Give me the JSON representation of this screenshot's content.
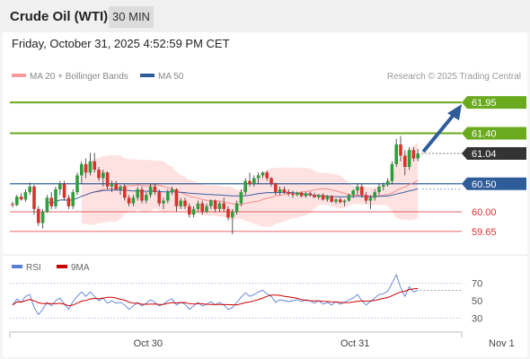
{
  "header": {
    "instrument": "Crude Oil (WTI)",
    "timeframe": "30 MIN"
  },
  "timestamp": "Friday, October 31, 2025 4:52:59 PM CET",
  "credit": "Research © 2025 Trading Central",
  "colors": {
    "up": "#2e9e3e",
    "down": "#d9322b",
    "resistance": "#6aaa1e",
    "support_blue": "#2f5d9a",
    "support_red": "#d33",
    "current": "#333333",
    "bollinger": "#fdd8d8",
    "ma20": "#f08d8d",
    "ma50": "#3a5fa0",
    "rsi": "#5b7fd6",
    "rsi_ma": "#cc0000"
  },
  "chart_data": [
    {
      "type": "candlestick",
      "legend": [
        {
          "name": "MA 20 + Bollinger Bands",
          "color": "#f79b9b"
        },
        {
          "name": "MA 50",
          "color": "#2f5d9a"
        }
      ],
      "ylim": [
        59.44,
        62.08
      ],
      "levels": [
        {
          "value": 61.95,
          "label": "61.95",
          "kind": "resistance"
        },
        {
          "value": 61.4,
          "label": "61.40",
          "kind": "resistance"
        },
        {
          "value": 61.04,
          "label": "61.04",
          "kind": "current"
        },
        {
          "value": 60.5,
          "label": "60.50",
          "kind": "support_blue"
        },
        {
          "value": 60.0,
          "label": "60.00",
          "kind": "support_red"
        },
        {
          "value": 59.65,
          "label": "59.65",
          "kind": "support_red"
        }
      ],
      "projection": {
        "from": 61.04,
        "to": 61.95
      },
      "candles": [
        [
          60.14,
          60.18,
          60.08,
          60.12
        ],
        [
          60.12,
          60.3,
          60.1,
          60.27
        ],
        [
          60.27,
          60.33,
          60.2,
          60.22
        ],
        [
          60.22,
          60.4,
          60.18,
          60.35
        ],
        [
          60.35,
          60.52,
          60.3,
          60.45
        ],
        [
          60.45,
          60.48,
          59.95,
          60.05
        ],
        [
          60.05,
          60.1,
          59.75,
          59.8
        ],
        [
          59.8,
          60.05,
          59.7,
          60.0
        ],
        [
          60.0,
          60.3,
          59.98,
          60.25
        ],
        [
          60.25,
          60.35,
          60.05,
          60.1
        ],
        [
          60.1,
          60.45,
          60.05,
          60.4
        ],
        [
          60.4,
          60.55,
          60.3,
          60.5
        ],
        [
          60.5,
          60.55,
          60.2,
          60.25
        ],
        [
          60.25,
          60.3,
          60.05,
          60.1
        ],
        [
          60.1,
          60.4,
          60.05,
          60.35
        ],
        [
          60.35,
          60.7,
          60.3,
          60.65
        ],
        [
          60.65,
          60.9,
          60.5,
          60.85
        ],
        [
          60.85,
          60.95,
          60.6,
          60.7
        ],
        [
          60.7,
          61.05,
          60.65,
          60.9
        ],
        [
          60.9,
          61.05,
          60.7,
          60.75
        ],
        [
          60.75,
          60.8,
          60.55,
          60.6
        ],
        [
          60.6,
          60.75,
          60.45,
          60.7
        ],
        [
          60.7,
          60.72,
          60.4,
          60.45
        ],
        [
          60.45,
          60.55,
          60.35,
          60.5
        ],
        [
          60.5,
          60.55,
          60.38,
          60.4
        ],
        [
          60.4,
          60.48,
          60.3,
          60.45
        ],
        [
          60.45,
          60.5,
          60.2,
          60.25
        ],
        [
          60.25,
          60.3,
          60.1,
          60.15
        ],
        [
          60.15,
          60.3,
          60.1,
          60.25
        ],
        [
          60.25,
          60.45,
          60.2,
          60.4
        ],
        [
          60.4,
          60.45,
          60.15,
          60.2
        ],
        [
          60.2,
          60.35,
          60.15,
          60.3
        ],
        [
          60.3,
          60.5,
          60.25,
          60.45
        ],
        [
          60.45,
          60.5,
          60.3,
          60.35
        ],
        [
          60.35,
          60.4,
          60.1,
          60.15
        ],
        [
          60.15,
          60.25,
          60.05,
          60.2
        ],
        [
          60.2,
          60.4,
          60.15,
          60.35
        ],
        [
          60.35,
          60.45,
          60.3,
          60.4
        ],
        [
          60.4,
          60.42,
          60.0,
          60.1
        ],
        [
          60.1,
          60.25,
          60.05,
          60.2
        ],
        [
          60.2,
          60.25,
          60.05,
          60.1
        ],
        [
          60.1,
          60.15,
          59.9,
          59.95
        ],
        [
          59.95,
          60.1,
          59.9,
          60.05
        ],
        [
          60.05,
          60.2,
          60.0,
          60.15
        ],
        [
          60.15,
          60.2,
          59.95,
          60.0
        ],
        [
          60.0,
          60.15,
          59.98,
          60.1
        ],
        [
          60.1,
          60.22,
          60.05,
          60.2
        ],
        [
          60.2,
          60.22,
          60.0,
          60.05
        ],
        [
          60.05,
          60.18,
          60.0,
          60.15
        ],
        [
          60.15,
          60.25,
          60.0,
          60.05
        ],
        [
          60.05,
          60.1,
          59.85,
          59.9
        ],
        [
          59.9,
          60.05,
          59.6,
          60.0
        ],
        [
          60.0,
          60.2,
          59.95,
          60.15
        ],
        [
          60.15,
          60.4,
          60.1,
          60.35
        ],
        [
          60.35,
          60.6,
          60.3,
          60.55
        ],
        [
          60.55,
          60.7,
          60.45,
          60.5
        ],
        [
          60.5,
          60.65,
          60.45,
          60.6
        ],
        [
          60.6,
          60.7,
          60.5,
          60.65
        ],
        [
          60.65,
          60.72,
          60.6,
          60.7
        ],
        [
          60.7,
          60.73,
          60.55,
          60.6
        ],
        [
          60.6,
          60.62,
          60.45,
          60.5
        ],
        [
          60.5,
          60.52,
          60.3,
          60.35
        ],
        [
          60.35,
          60.45,
          60.3,
          60.4
        ],
        [
          60.4,
          60.45,
          60.32,
          60.35
        ],
        [
          60.35,
          60.4,
          60.28,
          60.32
        ],
        [
          60.32,
          60.38,
          60.25,
          60.3
        ],
        [
          60.3,
          60.36,
          60.28,
          60.34
        ],
        [
          60.34,
          60.36,
          60.26,
          60.28
        ],
        [
          60.28,
          60.35,
          60.25,
          60.33
        ],
        [
          60.33,
          60.36,
          60.27,
          60.3
        ],
        [
          60.3,
          60.34,
          60.24,
          60.26
        ],
        [
          60.26,
          60.32,
          60.22,
          60.3
        ],
        [
          60.3,
          60.33,
          60.2,
          60.22
        ],
        [
          60.22,
          60.3,
          60.18,
          60.28
        ],
        [
          60.28,
          60.3,
          60.16,
          60.18
        ],
        [
          60.18,
          60.24,
          60.14,
          60.22
        ],
        [
          60.22,
          60.25,
          60.15,
          60.17
        ],
        [
          60.17,
          60.22,
          60.1,
          60.2
        ],
        [
          60.2,
          60.32,
          60.18,
          60.3
        ],
        [
          60.3,
          60.4,
          60.25,
          60.38
        ],
        [
          60.38,
          60.5,
          60.3,
          60.45
        ],
        [
          60.45,
          60.5,
          60.25,
          60.3
        ],
        [
          60.3,
          60.35,
          60.15,
          60.2
        ],
        [
          60.2,
          60.3,
          60.05,
          60.25
        ],
        [
          60.25,
          60.4,
          60.2,
          60.35
        ],
        [
          60.35,
          60.5,
          60.3,
          60.45
        ],
        [
          60.45,
          60.52,
          60.38,
          60.48
        ],
        [
          60.48,
          60.6,
          60.45,
          60.55
        ],
        [
          60.55,
          60.9,
          60.5,
          60.85
        ],
        [
          60.85,
          61.3,
          60.8,
          61.2
        ],
        [
          61.2,
          61.35,
          60.9,
          61.0
        ],
        [
          61.0,
          61.1,
          60.65,
          60.8
        ],
        [
          60.8,
          61.15,
          60.75,
          61.1
        ],
        [
          61.1,
          61.15,
          60.9,
          60.95
        ],
        [
          60.95,
          61.12,
          60.9,
          61.04
        ]
      ],
      "dates": [
        {
          "index": 31,
          "label": "Oct 30"
        },
        {
          "index": 79,
          "label": "Oct 31"
        },
        {
          "index": 113,
          "label": "Nov 1"
        }
      ]
    },
    {
      "type": "line",
      "legend": [
        {
          "name": "RSI",
          "color": "#5b7fd6"
        },
        {
          "name": "9MA",
          "color": "#cc0000"
        }
      ],
      "ylim": [
        20,
        80
      ],
      "ticks": [
        70,
        50,
        30
      ],
      "rsi": [
        45,
        52,
        48,
        55,
        57,
        42,
        34,
        40,
        48,
        44,
        50,
        53,
        46,
        40,
        49,
        55,
        60,
        55,
        60,
        55,
        50,
        53,
        47,
        50,
        47,
        48,
        45,
        40,
        44,
        48,
        44,
        47,
        51,
        48,
        44,
        46,
        50,
        52,
        45,
        48,
        46,
        40,
        44,
        48,
        44,
        46,
        49,
        45,
        48,
        45,
        40,
        42,
        48,
        54,
        59,
        55,
        57,
        60,
        62,
        58,
        55,
        48,
        51,
        50,
        49,
        50,
        51,
        49,
        51,
        50,
        47,
        50,
        46,
        48,
        45,
        49,
        46,
        48,
        51,
        53,
        57,
        50,
        45,
        49,
        53,
        57,
        58,
        61,
        70,
        80,
        65,
        55,
        66,
        60,
        62
      ]
    }
  ]
}
